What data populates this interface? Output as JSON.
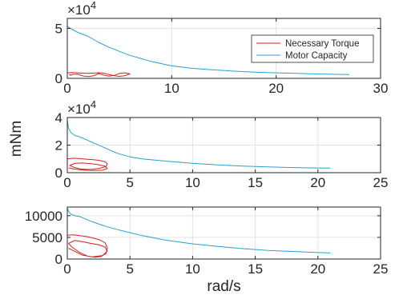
{
  "chart_data": [
    {
      "type": "line",
      "xlim": [
        0,
        30
      ],
      "ylim": [
        0,
        60000
      ],
      "xticks": [
        "0",
        "10",
        "20",
        "30"
      ],
      "yticks": [
        "0",
        "5"
      ],
      "y_exponent_label": "×10",
      "y_exponent_power": "4",
      "grid": true,
      "legend_placement": "top-right",
      "legend": [
        "Necessary Torque",
        "Motor Capacity"
      ],
      "series": [
        {
          "name": "Motor Capacity",
          "color": "#2a9fd0",
          "x": [
            0,
            0.3,
            1,
            2,
            3,
            4,
            5,
            6,
            7,
            8,
            10,
            12,
            14,
            16,
            18,
            20,
            22,
            24,
            26,
            27
          ],
          "y": [
            52000,
            50000,
            46000,
            42000,
            36000,
            31000,
            27000,
            23000,
            20000,
            17000,
            12500,
            10000,
            8500,
            7200,
            6200,
            5500,
            5000,
            4400,
            4000,
            3800
          ]
        },
        {
          "name": "Necessary Torque",
          "color": "#d62020",
          "x": [
            0,
            0.5,
            1,
            1.5,
            2,
            2.5,
            3,
            3.5,
            4,
            4.5,
            5,
            5.5,
            6,
            5.5,
            5,
            4.5,
            4,
            3.5,
            3,
            2.5,
            2,
            1.5,
            1,
            0.5,
            0.3,
            0.2
          ],
          "y": [
            5500,
            5800,
            5500,
            5200,
            5000,
            5300,
            5600,
            5200,
            3800,
            2600,
            2000,
            2600,
            4500,
            5500,
            5000,
            3000,
            2200,
            3200,
            4800,
            2500,
            1800,
            2400,
            4200,
            4000,
            3000,
            4300
          ]
        }
      ]
    },
    {
      "type": "line",
      "xlim": [
        0,
        25
      ],
      "ylim": [
        0,
        40000
      ],
      "xticks": [
        "0",
        "5",
        "10",
        "15",
        "20",
        "25"
      ],
      "yticks": [
        "0",
        "2",
        "4"
      ],
      "y_exponent_label": "×10",
      "y_exponent_power": "4",
      "ylabel": "mNm",
      "grid": true,
      "series": [
        {
          "name": "Motor Capacity",
          "color": "#2a9fd0",
          "x": [
            0,
            0.1,
            0.3,
            0.6,
            1,
            2,
            3,
            3.5,
            4,
            5,
            6,
            8,
            10,
            12,
            14,
            16,
            18,
            20,
            21
          ],
          "y": [
            38000,
            32000,
            29000,
            27000,
            26000,
            22000,
            18000,
            16000,
            14000,
            11500,
            10000,
            8300,
            6800,
            5600,
            4800,
            4200,
            3700,
            3400,
            3300
          ]
        },
        {
          "name": "Necessary Torque",
          "color": "#d62020",
          "x": [
            0,
            0.5,
            1,
            1.5,
            2,
            2.5,
            3,
            3.2,
            3.1,
            2.6,
            2,
            1.5,
            1,
            0.5,
            0.2,
            0.6,
            1.2,
            1.8,
            2.4,
            3,
            3.2,
            2.8,
            2,
            1.2,
            0.5,
            0.1
          ],
          "y": [
            10000,
            10500,
            10200,
            9800,
            9500,
            9000,
            8000,
            6500,
            4500,
            3200,
            2500,
            2400,
            2800,
            4000,
            5200,
            6800,
            7000,
            6600,
            6000,
            4800,
            3000,
            1800,
            1600,
            2000,
            2800,
            3500
          ]
        }
      ]
    },
    {
      "type": "line",
      "xlim": [
        0,
        25
      ],
      "ylim": [
        0,
        12000
      ],
      "xticks": [
        "0",
        "5",
        "10",
        "15",
        "20",
        "25"
      ],
      "yticks": [
        "0",
        "5000",
        "10000"
      ],
      "xlabel": "rad/s",
      "grid": true,
      "series": [
        {
          "name": "Motor Capacity",
          "color": "#2a9fd0",
          "x": [
            0,
            0.1,
            0.3,
            0.6,
            1,
            2,
            3,
            4,
            5,
            6,
            8,
            10,
            12,
            14,
            16,
            18,
            20,
            21
          ],
          "y": [
            11800,
            11000,
            10300,
            10000,
            9800,
            8600,
            7600,
            6800,
            6100,
            5400,
            4300,
            3500,
            2900,
            2400,
            2000,
            1750,
            1500,
            1400
          ]
        },
        {
          "name": "Necessary Torque",
          "color": "#d62020",
          "x": [
            0,
            0.5,
            1,
            1.5,
            2,
            2.5,
            3,
            3.2,
            3.1,
            2.7,
            2.2,
            1.6,
            1,
            0.4,
            0.1,
            0.6,
            1.2,
            1.9,
            2.5,
            3,
            3.2,
            2.8,
            2,
            1.2,
            0.5,
            0.1
          ],
          "y": [
            5500,
            5600,
            5400,
            5200,
            4900,
            4500,
            3800,
            2600,
            1300,
            600,
            400,
            700,
            1500,
            2700,
            3600,
            4300,
            4000,
            3600,
            3300,
            2800,
            1800,
            800,
            500,
            900,
            1900,
            2500
          ]
        }
      ]
    }
  ]
}
